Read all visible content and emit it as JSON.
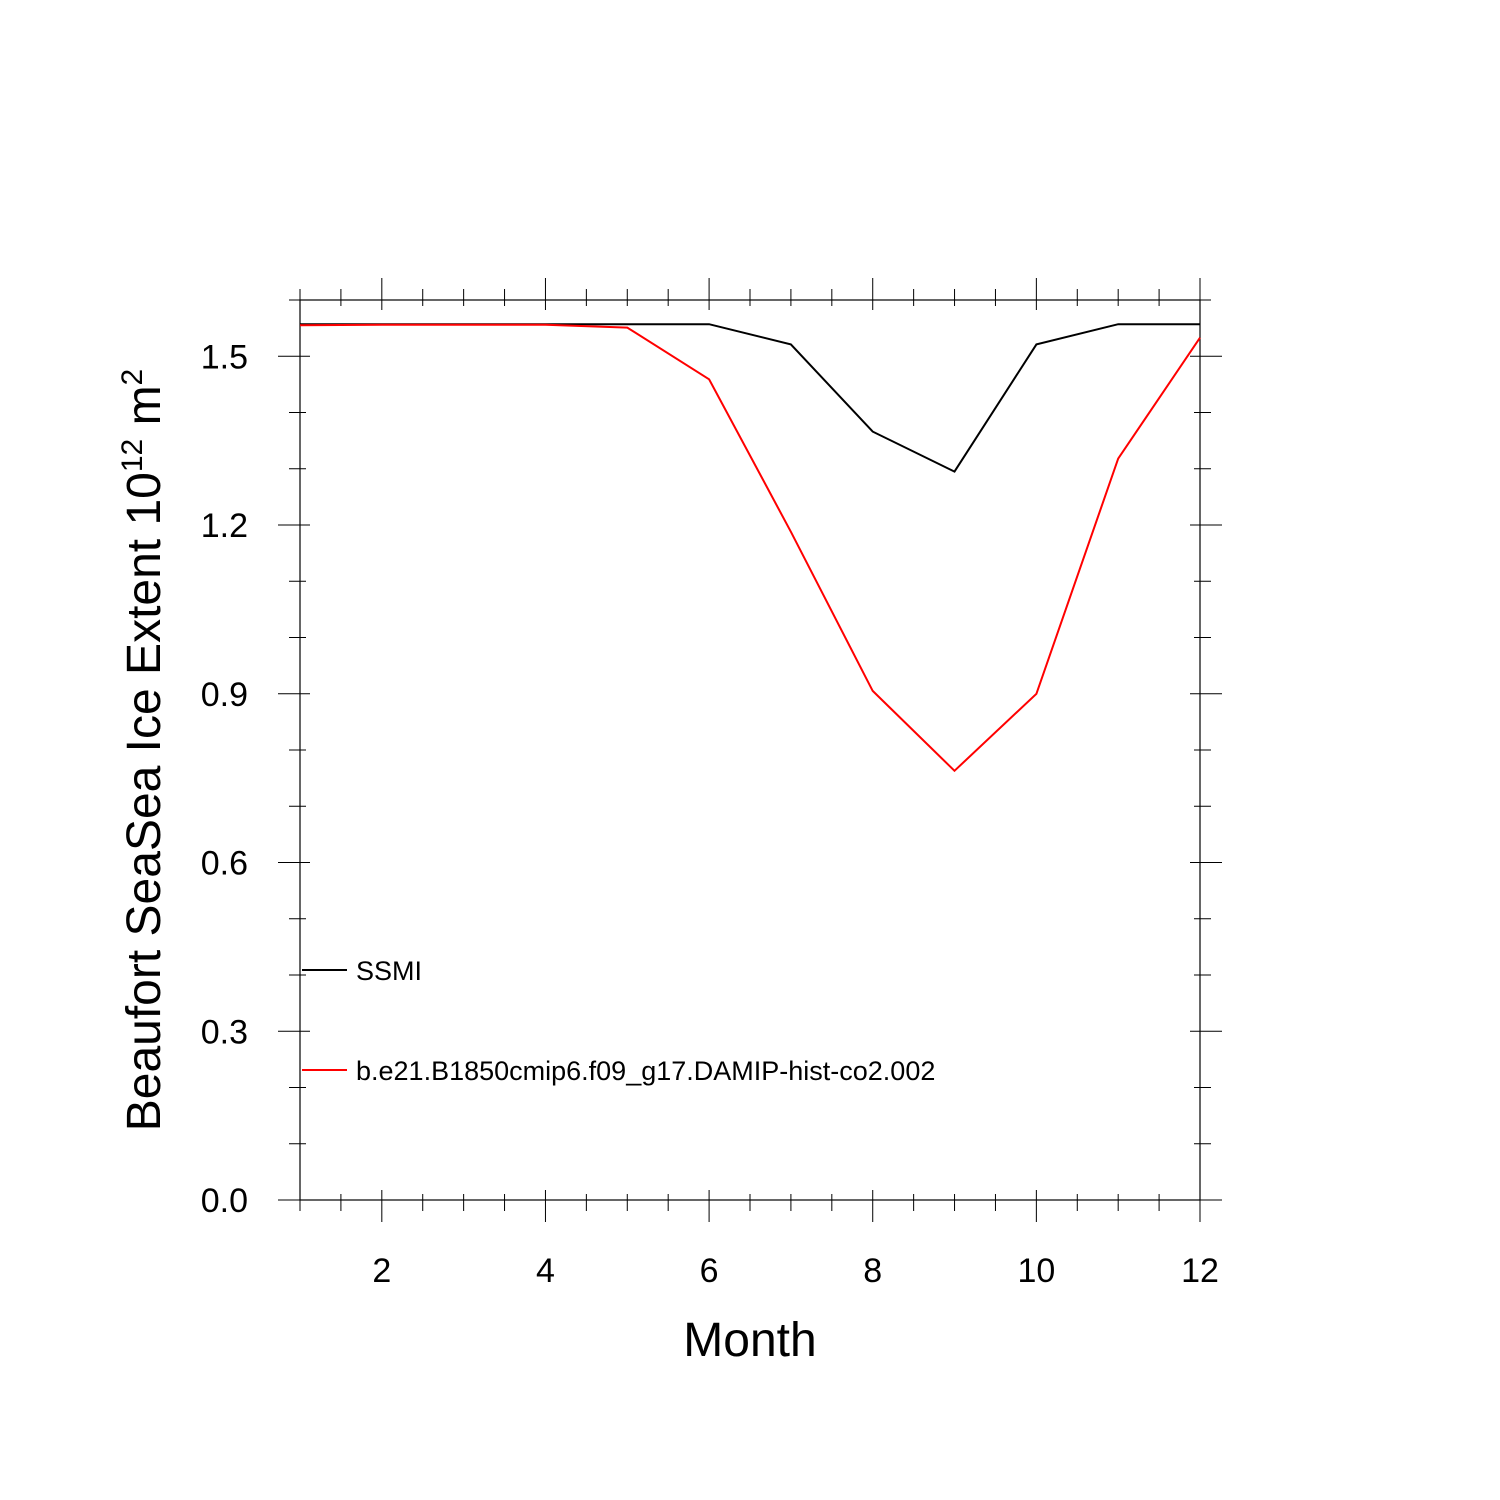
{
  "chart_data": {
    "type": "line",
    "title": "",
    "xlabel": "Month",
    "ylabel": {
      "prefix": "Beaufort SeaSea Ice Extent 10",
      "exponent1": "12",
      "unit": " m",
      "exponent2": "2"
    },
    "xlim": [
      1,
      12
    ],
    "ylim": [
      0,
      1.6
    ],
    "xticks": [
      2,
      4,
      6,
      8,
      10,
      12
    ],
    "xtick_labels": [
      "2",
      "4",
      "6",
      "8",
      "10",
      "12"
    ],
    "yticks": [
      0.0,
      0.3,
      0.6,
      0.9,
      1.2,
      1.5
    ],
    "ytick_labels": [
      "0.0",
      "0.3",
      "0.6",
      "0.9",
      "1.2",
      "1.5"
    ],
    "grid": false,
    "legend_position": "bottom-left",
    "x": [
      1,
      2,
      3,
      4,
      5,
      6,
      7,
      8,
      9,
      10,
      11,
      12
    ],
    "series": [
      {
        "name": "SSMI",
        "color": "#000000",
        "values": [
          1.557,
          1.557,
          1.557,
          1.557,
          1.557,
          1.557,
          1.521,
          1.366,
          1.295,
          1.521,
          1.557,
          1.557
        ]
      },
      {
        "name": "b.e21.B1850cmip6.f09_g17.DAMIP-hist-co2.002",
        "color": "#ff0000",
        "values": [
          1.555,
          1.556,
          1.556,
          1.556,
          1.551,
          1.459,
          1.188,
          0.905,
          0.763,
          0.9,
          1.318,
          1.533
        ]
      }
    ]
  }
}
